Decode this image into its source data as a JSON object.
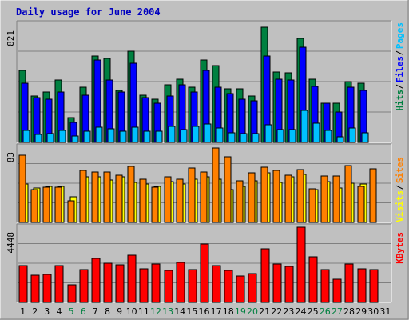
{
  "title": "Daily usage for June 2004",
  "colors": {
    "background": "#c0c0c0",
    "title": "#0000c0",
    "hits": "#008040",
    "files": "#0000ff",
    "pages": "#00c0ff",
    "visits": "#ffff00",
    "sites": "#ff8000",
    "kbytes": "#ff0000",
    "weekend_day": "#008040",
    "weekday": "#000000"
  },
  "chart_data": [
    {
      "type": "bar",
      "name": "hits-files-pages",
      "categories": [
        "1",
        "2",
        "3",
        "4",
        "5",
        "6",
        "7",
        "8",
        "9",
        "10",
        "11",
        "12",
        "13",
        "14",
        "15",
        "16",
        "17",
        "18",
        "19",
        "20",
        "21",
        "22",
        "23",
        "24",
        "25",
        "26",
        "27",
        "28",
        "29",
        "30",
        "31"
      ],
      "ylim": [
        0,
        821
      ],
      "ytick_label": "821",
      "right_labels": [
        "Pages",
        "Files",
        "Hits"
      ],
      "series": [
        {
          "name": "Hits",
          "values": [
            500,
            320,
            350,
            430,
            170,
            380,
            600,
            580,
            360,
            630,
            330,
            300,
            400,
            440,
            380,
            570,
            530,
            370,
            370,
            320,
            800,
            490,
            480,
            720,
            440,
            270,
            270,
            420,
            410,
            0,
            0
          ]
        },
        {
          "name": "Files",
          "values": [
            410,
            310,
            300,
            350,
            140,
            330,
            570,
            430,
            350,
            550,
            310,
            270,
            320,
            400,
            350,
            500,
            380,
            340,
            300,
            290,
            600,
            440,
            430,
            660,
            390,
            270,
            210,
            380,
            360,
            0,
            0
          ]
        },
        {
          "name": "Pages",
          "values": [
            85,
            55,
            60,
            85,
            45,
            80,
            105,
            95,
            80,
            105,
            75,
            80,
            110,
            90,
            110,
            125,
            100,
            65,
            60,
            60,
            120,
            90,
            90,
            220,
            135,
            85,
            40,
            100,
            65,
            0,
            0
          ]
        }
      ]
    },
    {
      "type": "bar",
      "name": "visits-sites",
      "categories": [
        "1",
        "2",
        "3",
        "4",
        "5",
        "6",
        "7",
        "8",
        "9",
        "10",
        "11",
        "12",
        "13",
        "14",
        "15",
        "16",
        "17",
        "18",
        "19",
        "20",
        "21",
        "22",
        "23",
        "24",
        "25",
        "26",
        "27",
        "28",
        "29",
        "30",
        "31"
      ],
      "ylim": [
        0,
        83
      ],
      "ytick_label": "83",
      "right_labels": [
        "Sites",
        "Visits"
      ],
      "series": [
        {
          "name": "Visits",
          "values": [
            42,
            38,
            40,
            40,
            28,
            50,
            50,
            47,
            50,
            44,
            42,
            40,
            45,
            42,
            48,
            50,
            48,
            36,
            40,
            46,
            55,
            44,
            50,
            53,
            36,
            45,
            38,
            43,
            42,
            0,
            0
          ]
        },
        {
          "name": "Sites",
          "values": [
            74,
            36,
            39,
            39,
            24,
            57,
            56,
            56,
            52,
            62,
            48,
            39,
            50,
            48,
            60,
            56,
            82,
            72,
            46,
            55,
            61,
            57,
            52,
            58,
            37,
            51,
            51,
            63,
            40,
            59,
            0
          ]
        }
      ]
    },
    {
      "type": "bar",
      "name": "kbytes",
      "categories": [
        "1",
        "2",
        "3",
        "4",
        "5",
        "6",
        "7",
        "8",
        "9",
        "10",
        "11",
        "12",
        "13",
        "14",
        "15",
        "16",
        "17",
        "18",
        "19",
        "20",
        "21",
        "22",
        "23",
        "24",
        "25",
        "26",
        "27",
        "28",
        "29",
        "30",
        "31"
      ],
      "ylim": [
        0,
        4448
      ],
      "ytick_label": "4448",
      "right_labels": [
        "KBytes"
      ],
      "series": [
        {
          "name": "KBytes",
          "values": [
            2200,
            1620,
            1670,
            2200,
            1050,
            1950,
            2620,
            2330,
            2220,
            2800,
            2000,
            2250,
            1900,
            2370,
            1920,
            3450,
            2200,
            1910,
            1580,
            1720,
            3160,
            2250,
            2110,
            4448,
            2720,
            1960,
            1370,
            2270,
            1990,
            1940,
            0
          ]
        }
      ]
    }
  ],
  "days": [
    {
      "label": "1",
      "weekend": false
    },
    {
      "label": "2",
      "weekend": false
    },
    {
      "label": "3",
      "weekend": false
    },
    {
      "label": "4",
      "weekend": false
    },
    {
      "label": "5",
      "weekend": true
    },
    {
      "label": "6",
      "weekend": true
    },
    {
      "label": "7",
      "weekend": false
    },
    {
      "label": "8",
      "weekend": false
    },
    {
      "label": "9",
      "weekend": false
    },
    {
      "label": "10",
      "weekend": false
    },
    {
      "label": "11",
      "weekend": false
    },
    {
      "label": "12",
      "weekend": true
    },
    {
      "label": "13",
      "weekend": true
    },
    {
      "label": "14",
      "weekend": false
    },
    {
      "label": "15",
      "weekend": false
    },
    {
      "label": "16",
      "weekend": false
    },
    {
      "label": "17",
      "weekend": false
    },
    {
      "label": "18",
      "weekend": false
    },
    {
      "label": "19",
      "weekend": true
    },
    {
      "label": "20",
      "weekend": true
    },
    {
      "label": "21",
      "weekend": false
    },
    {
      "label": "22",
      "weekend": false
    },
    {
      "label": "23",
      "weekend": false
    },
    {
      "label": "24",
      "weekend": false
    },
    {
      "label": "25",
      "weekend": false
    },
    {
      "label": "26",
      "weekend": true
    },
    {
      "label": "27",
      "weekend": true
    },
    {
      "label": "28",
      "weekend": false
    },
    {
      "label": "29",
      "weekend": false
    },
    {
      "label": "30",
      "weekend": false
    },
    {
      "label": "31",
      "weekend": false
    }
  ]
}
